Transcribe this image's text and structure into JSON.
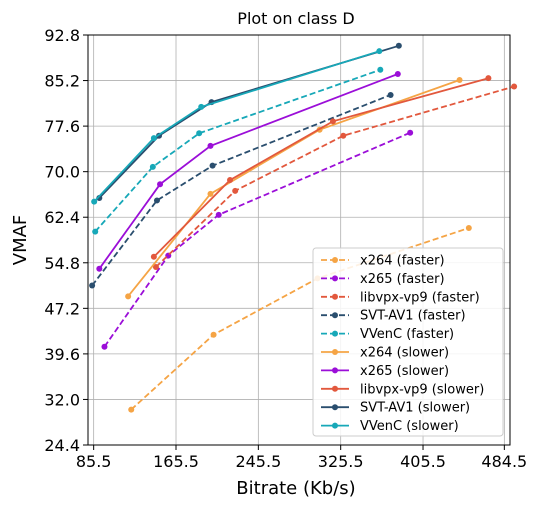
{
  "chart_data": {
    "type": "line",
    "title": "Plot on class D",
    "xlabel": "Bitrate (Kb/s)",
    "ylabel": "VMAF",
    "xlim": [
      80,
      490
    ],
    "ylim": [
      24.4,
      92.8
    ],
    "xticks": [
      "85.5",
      "165.5",
      "245.5",
      "325.5",
      "405.5",
      "484.5"
    ],
    "yticks": [
      "24.4",
      "32.0",
      "39.6",
      "47.2",
      "54.8",
      "62.4",
      "70.0",
      "77.6",
      "85.2",
      "92.8"
    ],
    "grid": true,
    "legend_position": "lower-right",
    "series": [
      {
        "name": "x264 (faster)",
        "color": "#f5a445",
        "dash": true,
        "points": [
          [
            122,
            30.3
          ],
          [
            202,
            42.8
          ],
          [
            303,
            52.2
          ],
          [
            450,
            60.6
          ]
        ]
      },
      {
        "name": "x265 (faster)",
        "color": "#9b0ed8",
        "dash": true,
        "points": [
          [
            96,
            40.8
          ],
          [
            158,
            56.0
          ],
          [
            207,
            62.8
          ],
          [
            393,
            76.5
          ]
        ]
      },
      {
        "name": "libvpx-vp9 (faster)",
        "color": "#e2583d",
        "dash": true,
        "points": [
          [
            146,
            54.1
          ],
          [
            223,
            66.8
          ],
          [
            328,
            76.0
          ],
          [
            494,
            84.2
          ]
        ]
      },
      {
        "name": "SVT-AV1 (faster)",
        "color": "#2a4e6e",
        "dash": true,
        "points": [
          [
            84,
            51.0
          ],
          [
            147,
            65.2
          ],
          [
            201,
            71.0
          ],
          [
            374,
            82.8
          ]
        ]
      },
      {
        "name": "VVenC (faster)",
        "color": "#17a8b8",
        "dash": true,
        "points": [
          [
            87,
            60.0
          ],
          [
            143,
            70.8
          ],
          [
            188,
            76.4
          ],
          [
            364,
            87.0
          ]
        ]
      },
      {
        "name": "x264 (slower)",
        "color": "#f5a445",
        "dash": false,
        "points": [
          [
            119,
            49.2
          ],
          [
            199,
            66.3
          ],
          [
            305,
            77.0
          ],
          [
            441,
            85.3
          ]
        ]
      },
      {
        "name": "x265 (slower)",
        "color": "#9b0ed8",
        "dash": false,
        "points": [
          [
            91,
            53.8
          ],
          [
            150,
            67.9
          ],
          [
            199,
            74.3
          ],
          [
            381,
            86.3
          ]
        ]
      },
      {
        "name": "libvpx-vp9 (slower)",
        "color": "#e2583d",
        "dash": false,
        "points": [
          [
            144,
            55.8
          ],
          [
            218,
            68.6
          ],
          [
            318,
            78.4
          ],
          [
            469,
            85.6
          ]
        ]
      },
      {
        "name": "SVT-AV1 (slower)",
        "color": "#2a4e6e",
        "dash": false,
        "points": [
          [
            91,
            65.6
          ],
          [
            149,
            76.0
          ],
          [
            200,
            81.6
          ],
          [
            382,
            91.0
          ]
        ]
      },
      {
        "name": "VVenC (slower)",
        "color": "#17a8b8",
        "dash": false,
        "points": [
          [
            86,
            65.0
          ],
          [
            144,
            75.6
          ],
          [
            190,
            80.8
          ],
          [
            363,
            90.1
          ]
        ]
      }
    ]
  }
}
